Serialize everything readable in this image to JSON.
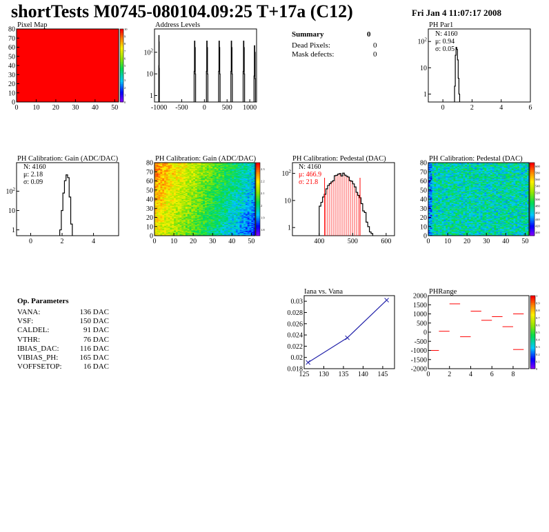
{
  "header": {
    "title": "shortTests M0745-080104.09:25 T+17a (C12)",
    "date": "Fri Jan  4 11:07:17 2008"
  },
  "summary": {
    "title": "Summary",
    "total": "0",
    "rows": [
      {
        "label": "Dead Pixels:",
        "value": "0"
      },
      {
        "label": "Mask defects:",
        "value": "0"
      }
    ]
  },
  "op_params": {
    "title": "Op. Parameters",
    "rows": [
      {
        "label": "VANA:",
        "value": "136 DAC"
      },
      {
        "label": "VSF:",
        "value": "150 DAC"
      },
      {
        "label": "CALDEL:",
        "value": "91 DAC"
      },
      {
        "label": "VTHR:",
        "value": "76 DAC"
      },
      {
        "label": "IBIAS_DAC:",
        "value": "116 DAC"
      },
      {
        "label": "VIBIAS_PH:",
        "value": "165 DAC"
      },
      {
        "label": "VOFFSETOP:",
        "value": "16 DAC"
      }
    ]
  },
  "colors": {
    "hist_line": "#000000",
    "fit_line": "#ff0000",
    "iana_line": "#2222aa",
    "pixelmap_fill": "#ff0000"
  },
  "chart_data": [
    {
      "id": "pixel-map",
      "type": "heatmap",
      "title": "Pixel Map",
      "xlim": [
        0,
        52
      ],
      "ylim": [
        0,
        80
      ],
      "xticks": [
        "0",
        "10",
        "20",
        "30",
        "40",
        "50"
      ],
      "yticks": [
        "0",
        "10",
        "20",
        "30",
        "40",
        "50",
        "60",
        "70",
        "80"
      ],
      "zticks": [
        "0",
        "1",
        "2",
        "3",
        "4",
        "5",
        "6",
        "7",
        "8",
        "9",
        "10"
      ],
      "uniform_value": 10
    },
    {
      "id": "address-levels",
      "type": "bar",
      "title": "Address Levels",
      "log_y": true,
      "xlim": [
        -1100,
        1150
      ],
      "xticks": [
        "-1000",
        "-500",
        "0",
        "500",
        "1000"
      ],
      "yticks": [
        "1",
        "10",
        "10^2"
      ],
      "peaks": [
        {
          "center": -1000,
          "height": 600
        },
        {
          "center": -210,
          "height": 330
        },
        {
          "center": 60,
          "height": 330
        },
        {
          "center": 330,
          "height": 330
        },
        {
          "center": 600,
          "height": 330
        },
        {
          "center": 870,
          "height": 330
        },
        {
          "center": 1110,
          "height": 200
        }
      ]
    },
    {
      "id": "ph-par1",
      "type": "bar",
      "title": "PH Par1",
      "log_y": true,
      "xlim": [
        -1,
        6
      ],
      "xticks": [
        "0",
        "2",
        "4",
        "6"
      ],
      "yticks": [
        "1",
        "10",
        "10^2"
      ],
      "stats": {
        "N": "N: 4160",
        "mu": "μ: 0.94",
        "sigma": "σ: 0.05"
      },
      "x": [
        0.8,
        0.85,
        0.9,
        0.95,
        1.0,
        1.05,
        1.1
      ],
      "values": [
        2,
        30,
        60,
        50,
        20,
        4,
        1
      ]
    },
    {
      "id": "gain-hist",
      "type": "bar",
      "title": "PH Calibration: Gain (ADC/DAC)",
      "log_y": true,
      "xlim": [
        -0.9,
        5.6
      ],
      "xticks": [
        "0",
        "2",
        "4"
      ],
      "yticks": [
        "1",
        "10",
        "10^2"
      ],
      "stats": {
        "N": "N: 4160",
        "mu": "μ: 2.18",
        "sigma": "σ: 0.09"
      },
      "x": [
        1.85,
        1.95,
        2.05,
        2.15,
        2.25,
        2.35,
        2.45,
        2.55
      ],
      "values": [
        1,
        10,
        80,
        350,
        700,
        500,
        50,
        2
      ]
    },
    {
      "id": "gain-map",
      "type": "heatmap",
      "title": "PH Calibration: Gain (ADC/DAC)",
      "xlim": [
        0,
        52
      ],
      "ylim": [
        0,
        80
      ],
      "xticks": [
        "0",
        "10",
        "20",
        "30",
        "40",
        "50"
      ],
      "yticks": [
        "0",
        "10",
        "20",
        "30",
        "40",
        "50",
        "60",
        "70",
        "80"
      ],
      "zticks": [
        "1.8",
        "1.9",
        "2",
        "2.1",
        "2.2",
        "2.3"
      ],
      "zlim": [
        1.75,
        2.35
      ],
      "description_of_trend": "higher gain at low column and high row"
    },
    {
      "id": "pedestal-hist",
      "type": "bar",
      "title": "PH Calibration: Pedestal (DAC)",
      "log_y": true,
      "xlim": [
        320,
        625
      ],
      "xticks": [
        "400",
        "500",
        "600"
      ],
      "yticks": [
        "1",
        "10",
        "10^2"
      ],
      "stats": {
        "N": "N: 4160",
        "mu": "μ: 466.9",
        "sigma": "σ: 21.8"
      },
      "fit_range": [
        416,
        522
      ],
      "mean": 466.9,
      "sigma": 21.8,
      "peak": 90
    },
    {
      "id": "pedestal-map",
      "type": "heatmap",
      "title": "PH Calibration: Pedestal (DAC)",
      "xlim": [
        0,
        52
      ],
      "ylim": [
        0,
        80
      ],
      "xticks": [
        "0",
        "10",
        "20",
        "30",
        "40",
        "50"
      ],
      "yticks": [
        "0",
        "10",
        "20",
        "30",
        "40",
        "50",
        "60",
        "70",
        "80"
      ],
      "zticks": [
        "400",
        "420",
        "440",
        "460",
        "480",
        "500",
        "520",
        "540",
        "560",
        "580",
        "600"
      ],
      "zlim": [
        390,
        610
      ]
    },
    {
      "id": "iana-vana",
      "type": "line",
      "title": "Iana vs. Vana",
      "xlim": [
        125,
        148
      ],
      "ylim": [
        0.018,
        0.031
      ],
      "xticks": [
        "125",
        "130",
        "135",
        "140",
        "145"
      ],
      "yticks": [
        "0.018",
        "0.02",
        "0.022",
        "0.024",
        "0.026",
        "0.028",
        "0.03"
      ],
      "x": [
        126,
        136,
        146
      ],
      "values": [
        0.0191,
        0.0235,
        0.0302
      ]
    },
    {
      "id": "phrange",
      "type": "scatter",
      "title": "PHRange",
      "xlim": [
        0,
        9.5
      ],
      "ylim": [
        -2000,
        2000
      ],
      "xticks": [
        "0",
        "2",
        "4",
        "6",
        "8"
      ],
      "yticks": [
        "2000",
        "1500",
        "1000",
        "500",
        "0",
        "-500",
        "-1000",
        "-1500",
        "-2000"
      ],
      "zticks": [
        "0",
        "0.1",
        "0.2",
        "0.3",
        "0.4",
        "0.5",
        "0.6",
        "0.7",
        "0.8",
        "0.9",
        "1"
      ],
      "segments": [
        {
          "x0": 0,
          "x1": 1,
          "y": -1000
        },
        {
          "x0": 1,
          "x1": 2,
          "y": 50
        },
        {
          "x0": 2,
          "x1": 3,
          "y": 1550
        },
        {
          "x0": 3,
          "x1": 4,
          "y": -250
        },
        {
          "x0": 4,
          "x1": 5,
          "y": 1150
        },
        {
          "x0": 5,
          "x1": 6,
          "y": 650
        },
        {
          "x0": 6,
          "x1": 7,
          "y": 850
        },
        {
          "x0": 7,
          "x1": 8,
          "y": 300
        },
        {
          "x0": 8,
          "x1": 9,
          "y": 1000
        },
        {
          "x0": 8,
          "x1": 9,
          "y": -950
        }
      ]
    }
  ]
}
